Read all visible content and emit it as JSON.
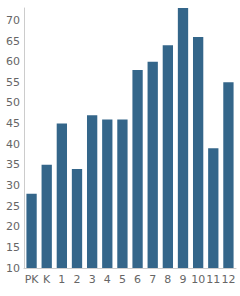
{
  "chart_data": {
    "type": "bar",
    "categories": [
      "PK",
      "K",
      "1",
      "2",
      "3",
      "4",
      "5",
      "6",
      "7",
      "8",
      "9",
      "10",
      "11",
      "12"
    ],
    "values": [
      28,
      35,
      45,
      34,
      47,
      46,
      46,
      58,
      60,
      64,
      73,
      66,
      39,
      55
    ],
    "color": "#34668a",
    "ylim": [
      10,
      73
    ],
    "yticks": [
      10,
      15,
      20,
      25,
      30,
      35,
      40,
      45,
      50,
      55,
      60,
      65,
      70
    ],
    "grid": false
  }
}
